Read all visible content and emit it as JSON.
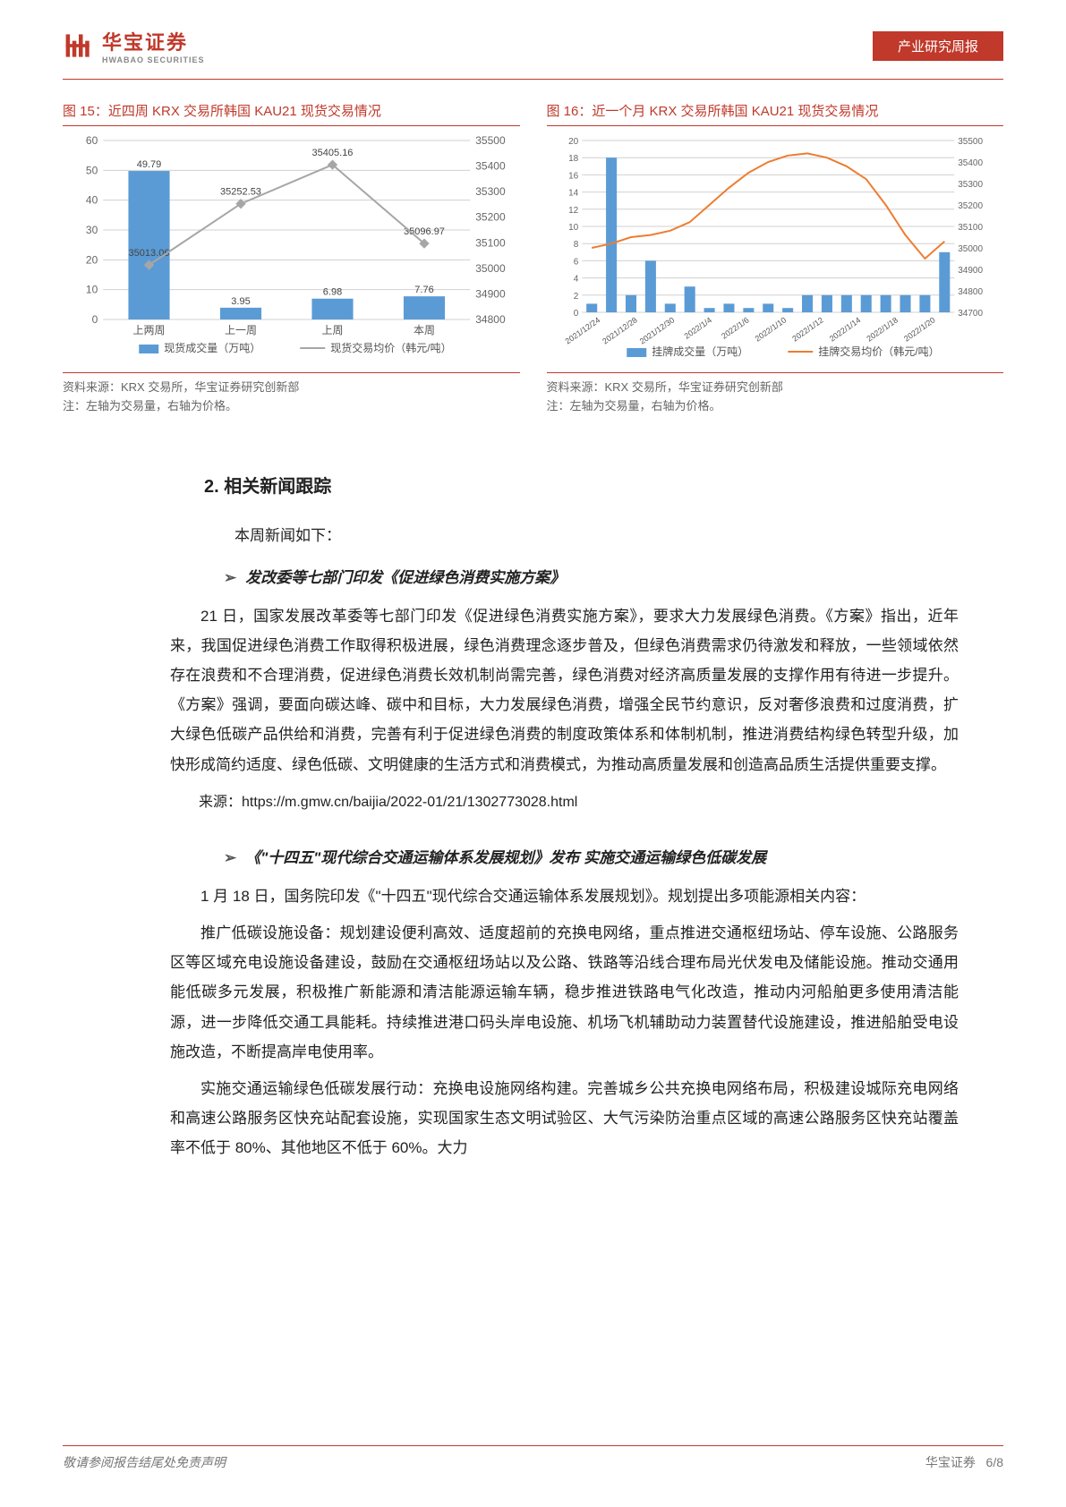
{
  "header": {
    "logo_cn": "华宝证券",
    "logo_en": "HWABAO SECURITIES",
    "report_tag": "产业研究周报"
  },
  "chart15": {
    "title": "图 15：近四周 KRX 交易所韩国 KAU21 现货交易情况",
    "type": "bar+line",
    "categories": [
      "上两周",
      "上一周",
      "上周",
      "本周"
    ],
    "bar_values": [
      49.79,
      3.95,
      6.98,
      7.76
    ],
    "bar_color": "#5b9bd5",
    "bar_width": 0.45,
    "line_values": [
      35013.06,
      35252.53,
      35405.16,
      35096.97
    ],
    "line_color": "#a6a6a6",
    "line_width": 2,
    "marker": "diamond",
    "y1_lim": [
      0,
      60
    ],
    "y1_step": 10,
    "y2_lim": [
      34800,
      35500
    ],
    "y2_step": 100,
    "bg": "#ffffff",
    "axis_color": "#d0d0d0",
    "label_fontsize": 12,
    "data_label_fontsize": 11,
    "legend_items": [
      "现货成交量（万吨）",
      "现货交易均价（韩元/吨）"
    ],
    "legend_colors": [
      "#5b9bd5",
      "#a6a6a6"
    ],
    "source": "资料来源：KRX 交易所，华宝证券研究创新部",
    "note": "注：左轴为交易量，右轴为价格。"
  },
  "chart16": {
    "title": "图 16：近一个月 KRX 交易所韩国 KAU21 现货交易情况",
    "type": "bar+line",
    "categories": [
      "2021/12/24",
      "2021/12/28",
      "2021/12/30",
      "2022/1/4",
      "2022/1/6",
      "2022/1/10",
      "2022/1/12",
      "2022/1/14",
      "2022/1/18",
      "2022/1/20"
    ],
    "bar_values": [
      1,
      18,
      2,
      6,
      1,
      3,
      0.5,
      1,
      0.5,
      1,
      0.5,
      2,
      2,
      2,
      2,
      2,
      2,
      2,
      7
    ],
    "bar_color": "#5b9bd5",
    "line_values": [
      35000,
      35020,
      35050,
      35060,
      35080,
      35120,
      35200,
      35280,
      35350,
      35400,
      35430,
      35440,
      35420,
      35380,
      35320,
      35200,
      35060,
      34950,
      35030
    ],
    "line_color": "#ed7d31",
    "line_width": 2,
    "y1_lim": [
      0,
      20
    ],
    "y1_step": 2,
    "y2_lim": [
      34700,
      35500
    ],
    "y2_step": 100,
    "bg": "#ffffff",
    "axis_color": "#d0d0d0",
    "label_fontsize": 10,
    "legend_items": [
      "挂牌成交量（万吨）",
      "挂牌交易均价（韩元/吨）"
    ],
    "legend_colors": [
      "#5b9bd5",
      "#ed7d31"
    ],
    "source": "资料来源：KRX 交易所，华宝证券研究创新部",
    "note": "注：左轴为交易量，右轴为价格。"
  },
  "section2": {
    "heading": "2. 相关新闻跟踪",
    "intro": "本周新闻如下：",
    "news": [
      {
        "headline": "发改委等七部门印发《促进绿色消费实施方案》",
        "paragraphs": [
          "21 日，国家发展改革委等七部门印发《促进绿色消费实施方案》，要求大力发展绿色消费。《方案》指出，近年来，我国促进绿色消费工作取得积极进展，绿色消费理念逐步普及，但绿色消费需求仍待激发和释放，一些领域依然存在浪费和不合理消费，促进绿色消费长效机制尚需完善，绿色消费对经济高质量发展的支撑作用有待进一步提升。《方案》强调，要面向碳达峰、碳中和目标，大力发展绿色消费，增强全民节约意识，反对奢侈浪费和过度消费，扩大绿色低碳产品供给和消费，完善有利于促进绿色消费的制度政策体系和体制机制，推进消费结构绿色转型升级，加快形成简约适度、绿色低碳、文明健康的生活方式和消费模式，为推动高质量发展和创造高品质生活提供重要支撑。"
        ],
        "source": "来源：https://m.gmw.cn/baijia/2022-01/21/1302773028.html"
      },
      {
        "headline": "《\"十四五\"现代综合交通运输体系发展规划》发布 实施交通运输绿色低碳发展",
        "paragraphs": [
          "1 月 18 日，国务院印发《\"十四五\"现代综合交通运输体系发展规划》。规划提出多项能源相关内容：",
          "推广低碳设施设备：规划建设便利高效、适度超前的充换电网络，重点推进交通枢纽场站、停车设施、公路服务区等区域充电设施设备建设，鼓励在交通枢纽场站以及公路、铁路等沿线合理布局光伏发电及储能设施。推动交通用能低碳多元发展，积极推广新能源和清洁能源运输车辆，稳步推进铁路电气化改造，推动内河船舶更多使用清洁能源，进一步降低交通工具能耗。持续推进港口码头岸电设施、机场飞机辅助动力装置替代设施建设，推进船舶受电设施改造，不断提高岸电使用率。",
          "实施交通运输绿色低碳发展行动：充换电设施网络构建。完善城乡公共充换电网络布局，积极建设城际充电网络和高速公路服务区快充站配套设施，实现国家生态文明试验区、大气污染防治重点区域的高速公路服务区快充站覆盖率不低于 80%、其他地区不低于 60%。大力"
        ]
      }
    ]
  },
  "footer": {
    "disclaimer": "敬请参阅报告结尾处免责声明",
    "company": "华宝证券",
    "page": "6/8"
  }
}
